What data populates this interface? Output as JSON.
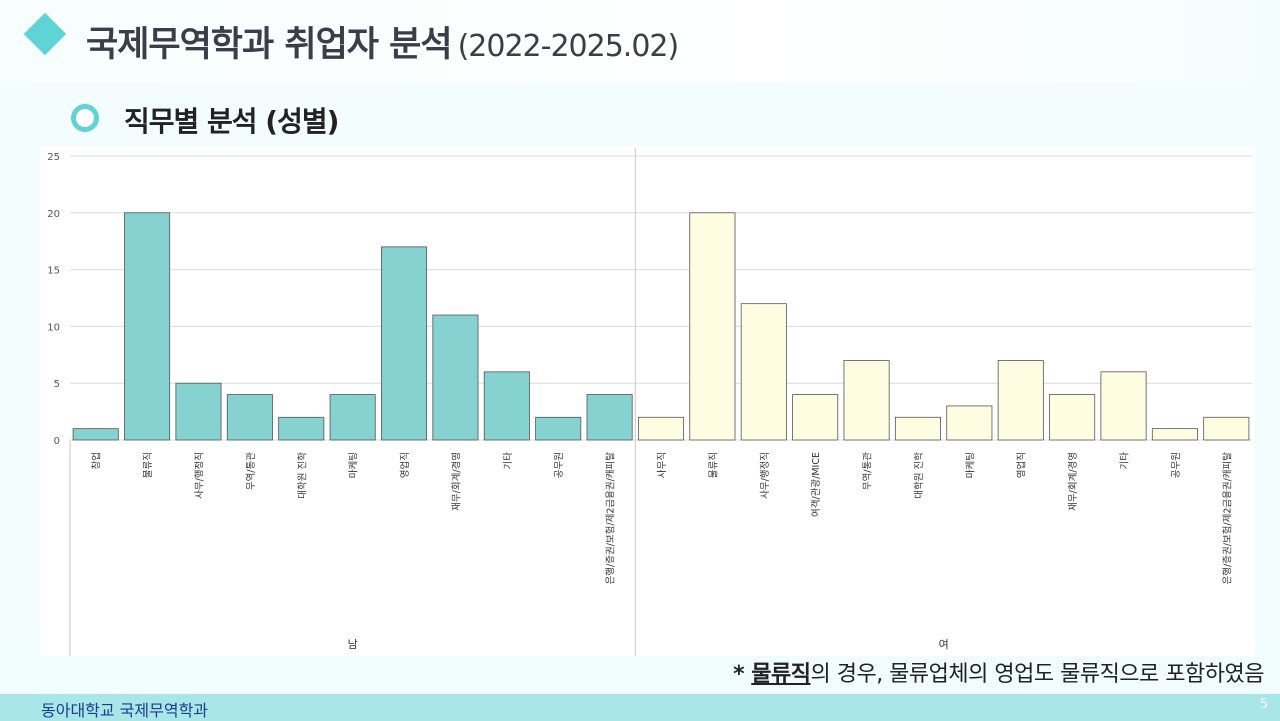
{
  "header": {
    "title": "국제무역학과 취업자 분석",
    "date_range": "(2022-2025.02)",
    "subtitle": "직무별 분석 (성별)"
  },
  "note": {
    "prefix": "* ",
    "emphasis": "물류직",
    "rest": "의 경우, 물류업체의 영업도 물류직으로 포함하였음"
  },
  "footer": {
    "department": "동아대학교 국제무역학과",
    "page_number": "5"
  },
  "colors": {
    "accent": "#5fd3d6",
    "male_bar": "#86d2d0",
    "female_bar": "#fffde1",
    "footer": "#a8e6e8"
  },
  "chart_data": {
    "type": "bar",
    "ylim": [
      0,
      25
    ],
    "yticks": [
      0,
      5,
      10,
      15,
      20,
      25
    ],
    "grid": true,
    "groups": [
      {
        "name": "남",
        "categories": [
          "창업",
          "물류직",
          "사무/행정직",
          "무역/통관",
          "대학원 진학",
          "마케팅",
          "영업직",
          "재무/회계/경영",
          "기타",
          "공무원",
          "은행/증권/보험/제2금융권/캐피탈"
        ],
        "values": [
          1,
          20,
          5,
          4,
          2,
          4,
          17,
          11,
          6,
          2,
          4
        ]
      },
      {
        "name": "여",
        "categories": [
          "사무직",
          "물류직",
          "사무/행정직",
          "여객/관광/MICE",
          "무역/통관",
          "대학원 진학",
          "마케팅",
          "영업직",
          "재무/회계/경영",
          "기타",
          "공무원",
          "은행/증권/보험/제2금융권/캐피탈"
        ],
        "values": [
          2,
          20,
          12,
          4,
          7,
          2,
          3,
          7,
          4,
          6,
          1,
          2
        ]
      }
    ]
  }
}
